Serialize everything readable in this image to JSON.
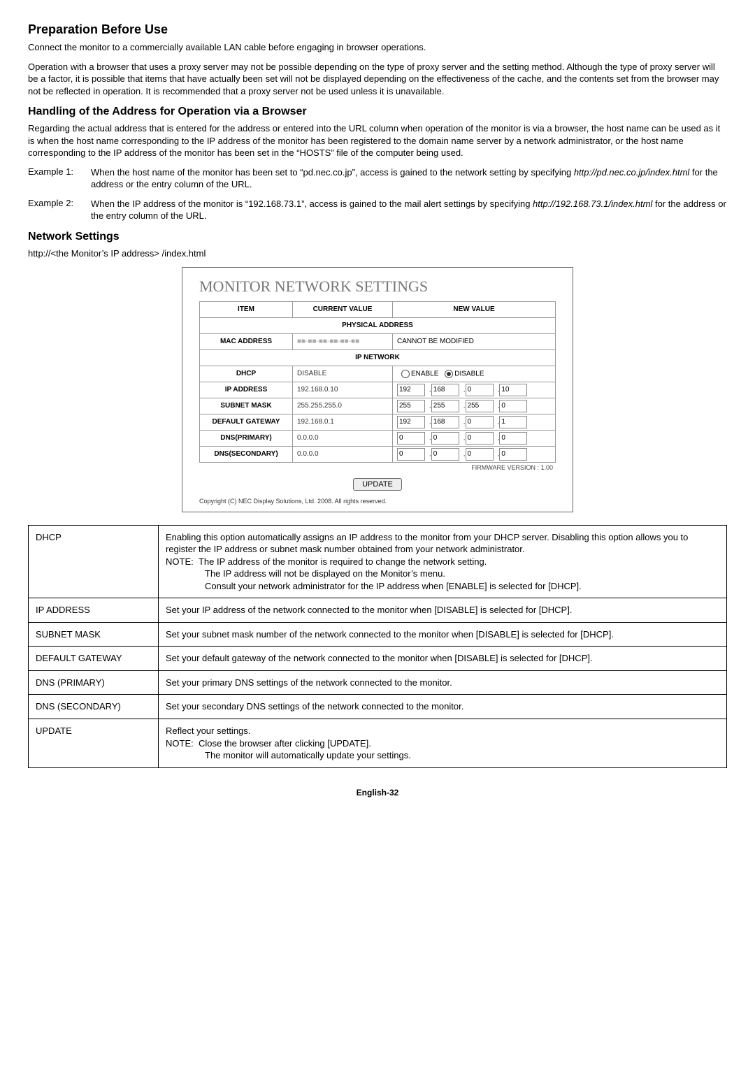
{
  "section1": {
    "title": "Preparation Before Use",
    "p1": "Connect the monitor to a commercially available LAN cable before engaging in browser operations.",
    "p2": "Operation with a browser that uses a proxy server may not be possible depending on the type of proxy server and the setting method. Although the type of proxy server will be a factor, it is possible that items that have actually been set will not be displayed depending on the effectiveness of the cache, and the contents set from the browser may not be reflected in operation. It is recommended that a proxy server not be used unless it is unavailable."
  },
  "section2": {
    "title": "Handling of the Address for Operation via a Browser",
    "p1": "Regarding the actual address that is entered for the address or entered into the URL column when operation of the monitor is via a browser, the host name can be used as it is when the host name corresponding to the IP address of the monitor has been registered to the domain name server by a network administrator, or the host name corresponding to the IP address of the monitor has been set in the “HOSTS” file of the computer being used.",
    "ex1_label": "Example 1:",
    "ex1_a": "When the host name of the monitor has been set to “pd.nec.co.jp”, access is gained to the network setting by specifying ",
    "ex1_url": "http://pd.nec.co.jp/index.html",
    "ex1_b": " for the address or the entry column of the URL.",
    "ex2_label": "Example 2:",
    "ex2_a": "When the IP address of the monitor is “192.168.73.1”, access is gained to the mail alert settings by specifying ",
    "ex2_url": "http://192.168.73.1/index.html",
    "ex2_b": " for the address or the entry column of the URL."
  },
  "section3": {
    "title": "Network Settings",
    "subtitle": "http://<the Monitor’s IP address> /index.html"
  },
  "screenshot": {
    "title": "MONITOR NETWORK SETTINGS",
    "h_item": "ITEM",
    "h_cur": "CURRENT VALUE",
    "h_new": "NEW VALUE",
    "h_phys": "PHYSICAL ADDRESS",
    "mac_l": "MAC ADDRESS",
    "mac_v": "■■-■■-■■-■■-■■-■■",
    "mac_n": "CANNOT BE MODIFIED",
    "h_ipnet": "IP NETWORK",
    "dhcp_l": "DHCP",
    "dhcp_v": "DISABLE",
    "dhcp_en": "ENABLE",
    "dhcp_di": "DISABLE",
    "ip_l": "IP ADDRESS",
    "ip_v": "192.168.0.10",
    "ip": [
      "192",
      "168",
      "0",
      "10"
    ],
    "sm_l": "SUBNET MASK",
    "sm_v": "255.255.255.0",
    "sm": [
      "255",
      "255",
      "255",
      "0"
    ],
    "gw_l": "DEFAULT GATEWAY",
    "gw_v": "192.168.0.1",
    "gw": [
      "192",
      "168",
      "0",
      "1"
    ],
    "d1_l": "DNS(PRIMARY)",
    "d1_v": "0.0.0.0",
    "d1": [
      "0",
      "0",
      "0",
      "0"
    ],
    "d2_l": "DNS(SECONDARY)",
    "d2_v": "0.0.0.0",
    "d2": [
      "0",
      "0",
      "0",
      "0"
    ],
    "fw": "FIRMWARE VERSION : 1.00",
    "update": "UPDATE",
    "copy": "Copyright (C) NEC Display Solutions, Ltd. 2008. All rights reserved."
  },
  "desc": {
    "dhcp_k": "DHCP",
    "dhcp_v1": "Enabling this option automatically assigns an IP address to the monitor from your DHCP server. Disabling this option allows you to register the IP address or subnet mask number obtained from your network administrator.",
    "dhcp_n0": "NOTE:",
    "dhcp_n1": "The IP address of the monitor is required to change the network setting.",
    "dhcp_n2": "The IP address will not be displayed on the Monitor’s menu.",
    "dhcp_n3": "Consult your network administrator for the IP address when [ENABLE] is selected for [DHCP].",
    "ip_k": "IP ADDRESS",
    "ip_v": "Set your IP address of the network connected to the monitor when [DISABLE] is selected for [DHCP].",
    "sm_k": "SUBNET MASK",
    "sm_v": "Set your subnet mask number of the network connected to the monitor when [DISABLE] is selected for [DHCP].",
    "gw_k": "DEFAULT GATEWAY",
    "gw_v": "Set your default gateway of the network connected to the monitor when [DISABLE] is selected for [DHCP].",
    "d1_k": "DNS (PRIMARY)",
    "d1_v": "Set your primary DNS settings of the network connected to the monitor.",
    "d2_k": "DNS (SECONDARY)",
    "d2_v": "Set your secondary DNS settings of the network connected to the monitor.",
    "up_k": "UPDATE",
    "up_v1": "Reflect your settings.",
    "up_n0": "NOTE:",
    "up_n1": "Close the browser after clicking [UPDATE].",
    "up_n2": "The monitor will automatically update your settings."
  },
  "footer": "English-32"
}
